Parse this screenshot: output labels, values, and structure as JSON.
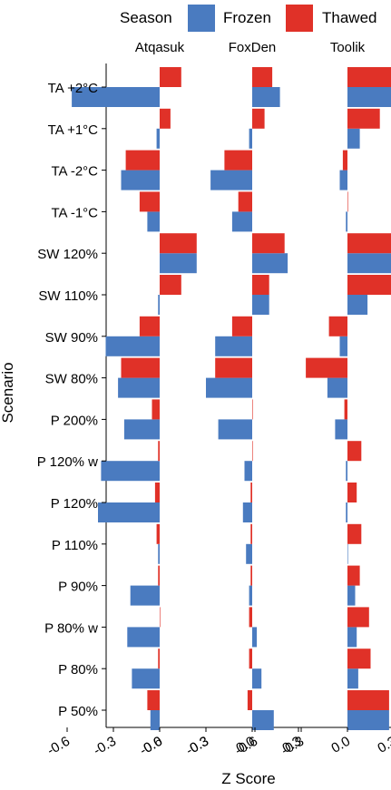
{
  "chart_data": {
    "type": "bar",
    "orientation": "horizontal",
    "ylabel": "Scenario",
    "xlabel": "Z Score",
    "legend": {
      "title": "Season",
      "position": "top",
      "items": [
        {
          "name": "Frozen",
          "color": "#4a7bc0"
        },
        {
          "name": "Thawed",
          "color": "#e03128"
        }
      ]
    },
    "panels": [
      "Atqasuk",
      "FoxDen",
      "Toolik"
    ],
    "xlim": [
      -0.6,
      0.45
    ],
    "xticks": [
      -0.6,
      -0.3,
      0.0,
      0.3
    ],
    "xtick_labels": [
      "-0.6",
      "-0.3",
      "0.0",
      "0.3"
    ],
    "grid": false,
    "categories": [
      "TA +2°C",
      "TA +1°C",
      "TA -2°C",
      "TA -1°C",
      "SW 120%",
      "SW 110%",
      "SW 90%",
      "SW 80%",
      "P 200%",
      "P 120% w",
      "P 120%",
      "P 110%",
      "P 90%",
      "P 80% w",
      "P 80%",
      "P 50%"
    ],
    "series": [
      {
        "name": "Frozen",
        "color": "#4a7bc0",
        "panels": {
          "Atqasuk": [
            -0.57,
            -0.02,
            -0.25,
            -0.08,
            0.24,
            -0.01,
            -0.35,
            -0.27,
            -0.23,
            -0.38,
            -0.4,
            -0.01,
            -0.19,
            -0.21,
            -0.18,
            -0.06
          ],
          "FoxDen": [
            0.18,
            -0.02,
            -0.27,
            -0.13,
            0.23,
            0.11,
            -0.24,
            -0.3,
            -0.22,
            -0.05,
            -0.06,
            -0.04,
            -0.02,
            0.03,
            0.06,
            0.14
          ],
          "Toolik": [
            0.3,
            0.08,
            -0.05,
            -0.01,
            0.33,
            0.13,
            -0.05,
            -0.13,
            -0.08,
            -0.01,
            -0.01,
            0.0,
            0.05,
            0.06,
            0.07,
            0.27
          ]
        }
      },
      {
        "name": "Thawed",
        "color": "#e03128",
        "panels": {
          "Atqasuk": [
            0.14,
            0.07,
            -0.22,
            -0.13,
            0.24,
            0.14,
            -0.13,
            -0.25,
            -0.05,
            -0.01,
            -0.03,
            -0.02,
            -0.01,
            0.0,
            -0.01,
            -0.08
          ],
          "FoxDen": [
            0.13,
            0.08,
            -0.18,
            -0.09,
            0.21,
            0.11,
            -0.13,
            -0.24,
            0.0,
            0.0,
            -0.01,
            -0.01,
            -0.01,
            -0.02,
            -0.02,
            -0.03
          ],
          "Toolik": [
            0.33,
            0.21,
            -0.03,
            0.0,
            0.54,
            0.3,
            -0.12,
            -0.27,
            -0.02,
            0.09,
            0.06,
            0.09,
            0.08,
            0.14,
            0.15,
            0.27
          ]
        }
      }
    ]
  }
}
